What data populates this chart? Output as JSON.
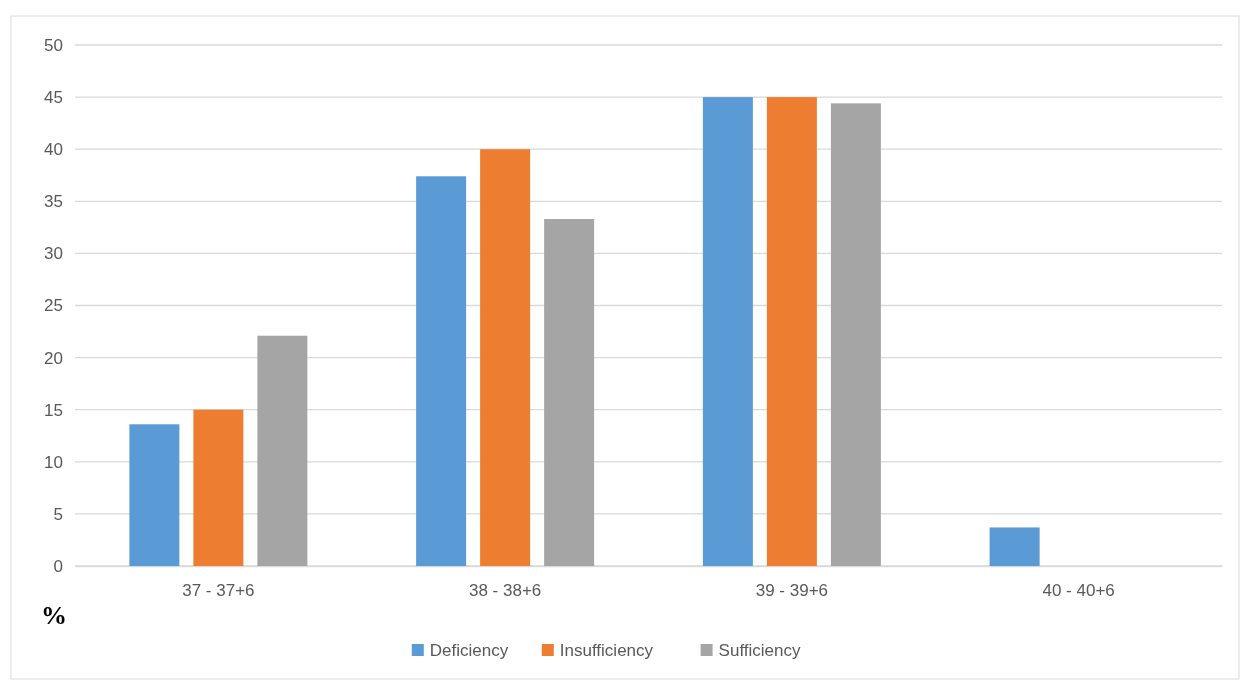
{
  "chart_data": {
    "type": "bar",
    "ylabel": "%",
    "categories": [
      "37 - 37+6",
      "38 - 38+6",
      "39 - 39+6",
      "40 - 40+6"
    ],
    "series": [
      {
        "name": "Deficiency",
        "color": "#5b9bd5",
        "values": [
          13.6,
          37.4,
          45,
          3.7
        ]
      },
      {
        "name": "Insufficiency",
        "color": "#ed7d31",
        "values": [
          15,
          40,
          45,
          0
        ]
      },
      {
        "name": "Sufficiency",
        "color": "#a5a5a5",
        "values": [
          22.1,
          33.3,
          44.4,
          0
        ]
      }
    ],
    "ylim": [
      0,
      50
    ],
    "yticks": [
      0,
      5,
      10,
      15,
      20,
      25,
      30,
      35,
      40,
      45,
      50
    ],
    "grid": "y",
    "legend": "bottom"
  }
}
